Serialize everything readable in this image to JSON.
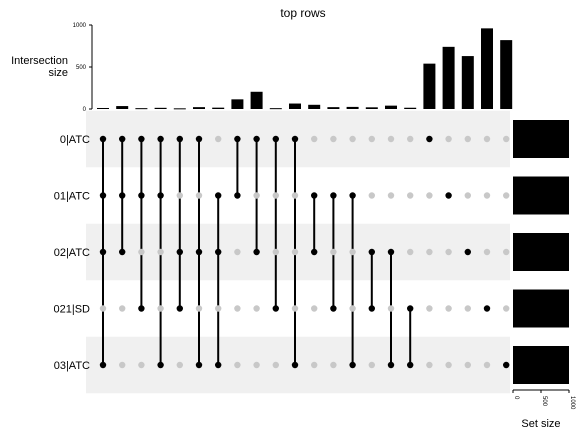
{
  "chart_data": {
    "type": "upset",
    "title": "top rows",
    "ylabel_lines": [
      "Intersection",
      "size"
    ],
    "ylim": [
      0,
      1000
    ],
    "yticks": [
      "0",
      "500",
      "1000"
    ],
    "sets": [
      "0|ATC",
      "01|ATC",
      "02|ATC",
      "021|SD",
      "03|ATC"
    ],
    "set_sizes": [
      1000,
      1000,
      1000,
      1000,
      1000
    ],
    "set_size_axis": {
      "label": "Set size",
      "ticks": [
        "0",
        "500",
        "1000"
      ],
      "lim": [
        0,
        1000
      ]
    },
    "intersections": [
      {
        "sets": [
          0,
          1,
          2,
          4
        ],
        "size": 12
      },
      {
        "sets": [
          0,
          1,
          2
        ],
        "size": 35
      },
      {
        "sets": [
          0,
          1,
          3
        ],
        "size": 10
      },
      {
        "sets": [
          0,
          1,
          4
        ],
        "size": 14
      },
      {
        "sets": [
          0,
          2,
          3
        ],
        "size": 8
      },
      {
        "sets": [
          0,
          2,
          4
        ],
        "size": 22
      },
      {
        "sets": [
          1,
          2,
          4
        ],
        "size": 16
      },
      {
        "sets": [
          0,
          1
        ],
        "size": 115
      },
      {
        "sets": [
          0,
          2
        ],
        "size": 205
      },
      {
        "sets": [
          0,
          3
        ],
        "size": 10
      },
      {
        "sets": [
          0,
          4
        ],
        "size": 65
      },
      {
        "sets": [
          1,
          2
        ],
        "size": 50
      },
      {
        "sets": [
          1,
          3
        ],
        "size": 22
      },
      {
        "sets": [
          1,
          4
        ],
        "size": 25
      },
      {
        "sets": [
          2,
          3
        ],
        "size": 20
      },
      {
        "sets": [
          2,
          4
        ],
        "size": 40
      },
      {
        "sets": [
          3,
          4
        ],
        "size": 15
      },
      {
        "sets": [
          0
        ],
        "size": 540
      },
      {
        "sets": [
          1
        ],
        "size": 740
      },
      {
        "sets": [
          2
        ],
        "size": 630
      },
      {
        "sets": [
          3
        ],
        "size": 960
      },
      {
        "sets": [
          4
        ],
        "size": 820
      }
    ],
    "colors": {
      "bar": "#000000",
      "dot_active": "#000000",
      "dot_inactive": "#c8c8c8",
      "stripe": "#f0f0f0"
    },
    "grid": false,
    "legend": "none"
  }
}
